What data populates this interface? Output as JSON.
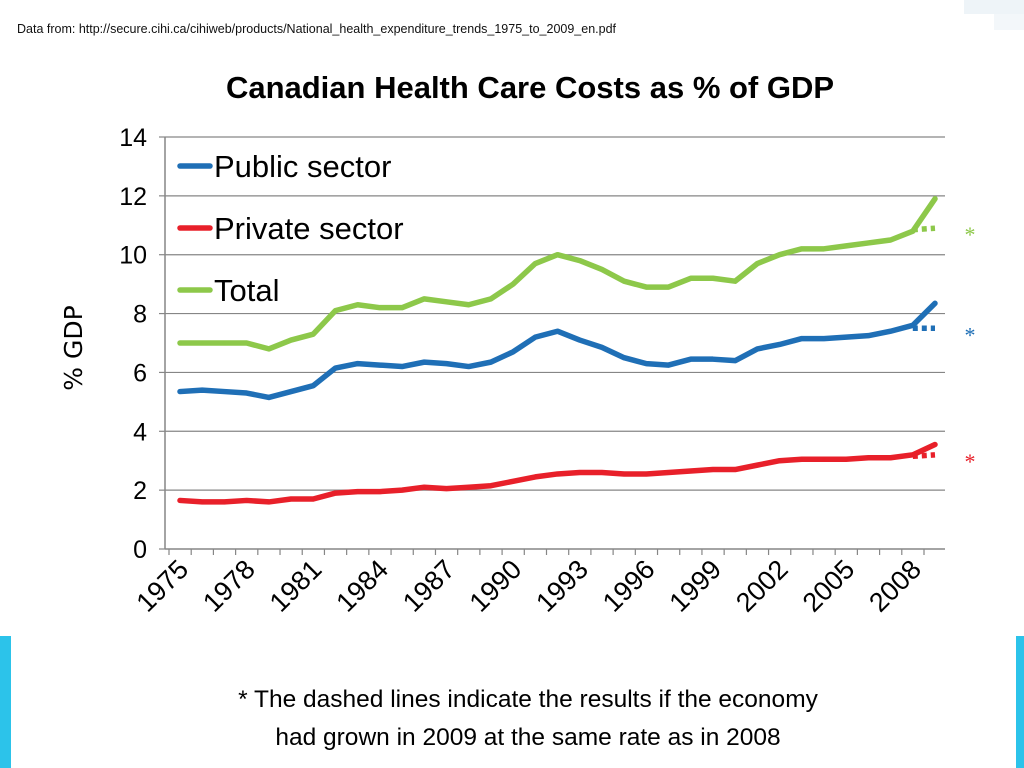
{
  "source_note": "Data from: http://secure.cihi.ca/cihiweb/products/National_health_expenditure_trends_1975_to_2009_en.pdf",
  "footnote": {
    "line1": "* The dashed lines indicate the results if the economy",
    "line2": "had grown in 2009 at the same rate as in 2008"
  },
  "chart_data": {
    "type": "line",
    "title": "Canadian Health Care Costs as % of GDP",
    "xlabel": "",
    "ylabel": "% GDP",
    "ylim": [
      0,
      14
    ],
    "yticks": [
      "0",
      "2",
      "4",
      "6",
      "8",
      "10",
      "12",
      "14"
    ],
    "x": [
      1975,
      1976,
      1977,
      1978,
      1979,
      1980,
      1981,
      1982,
      1983,
      1984,
      1985,
      1986,
      1987,
      1988,
      1989,
      1990,
      1991,
      1992,
      1993,
      1994,
      1995,
      1996,
      1997,
      1998,
      1999,
      2000,
      2001,
      2002,
      2003,
      2004,
      2005,
      2006,
      2007,
      2008,
      2009
    ],
    "xtick_labels": [
      "1975",
      "1978",
      "1981",
      "1984",
      "1987",
      "1990",
      "1993",
      "1996",
      "1999",
      "2002",
      "2005",
      "2008"
    ],
    "grid": "horizontal",
    "legend_position": "top-left",
    "series": [
      {
        "name": "Public sector",
        "color": "#1f6fb6",
        "values": [
          5.35,
          5.4,
          5.35,
          5.3,
          5.15,
          5.35,
          5.55,
          6.15,
          6.3,
          6.25,
          6.2,
          6.35,
          6.3,
          6.2,
          6.35,
          6.7,
          7.2,
          7.4,
          7.1,
          6.85,
          6.5,
          6.3,
          6.25,
          6.45,
          6.45,
          6.4,
          6.8,
          6.95,
          7.15,
          7.15,
          7.2,
          7.25,
          7.4,
          7.6,
          8.35
        ],
        "projection": {
          "x": [
            2008,
            2009
          ],
          "values": [
            7.5,
            7.5
          ],
          "marker": "*"
        }
      },
      {
        "name": "Private sector",
        "color": "#e8202a",
        "values": [
          1.65,
          1.6,
          1.6,
          1.65,
          1.6,
          1.7,
          1.7,
          1.9,
          1.95,
          1.95,
          2.0,
          2.1,
          2.05,
          2.1,
          2.15,
          2.3,
          2.45,
          2.55,
          2.6,
          2.6,
          2.55,
          2.55,
          2.6,
          2.65,
          2.7,
          2.7,
          2.85,
          3.0,
          3.05,
          3.05,
          3.05,
          3.1,
          3.1,
          3.2,
          3.55
        ],
        "projection": {
          "x": [
            2008,
            2009
          ],
          "values": [
            3.15,
            3.2
          ],
          "marker": "*"
        }
      },
      {
        "name": "Total",
        "color": "#8dc84a",
        "values": [
          7.0,
          7.0,
          7.0,
          7.0,
          6.8,
          7.1,
          7.3,
          8.1,
          8.3,
          8.2,
          8.2,
          8.5,
          8.4,
          8.3,
          8.5,
          9.0,
          9.7,
          10.0,
          9.8,
          9.5,
          9.1,
          8.9,
          8.9,
          9.2,
          9.2,
          9.1,
          9.7,
          10.0,
          10.2,
          10.2,
          10.3,
          10.4,
          10.5,
          10.8,
          11.9
        ],
        "projection": {
          "x": [
            2008,
            2009
          ],
          "values": [
            10.85,
            10.9
          ],
          "marker": "*"
        }
      }
    ]
  }
}
